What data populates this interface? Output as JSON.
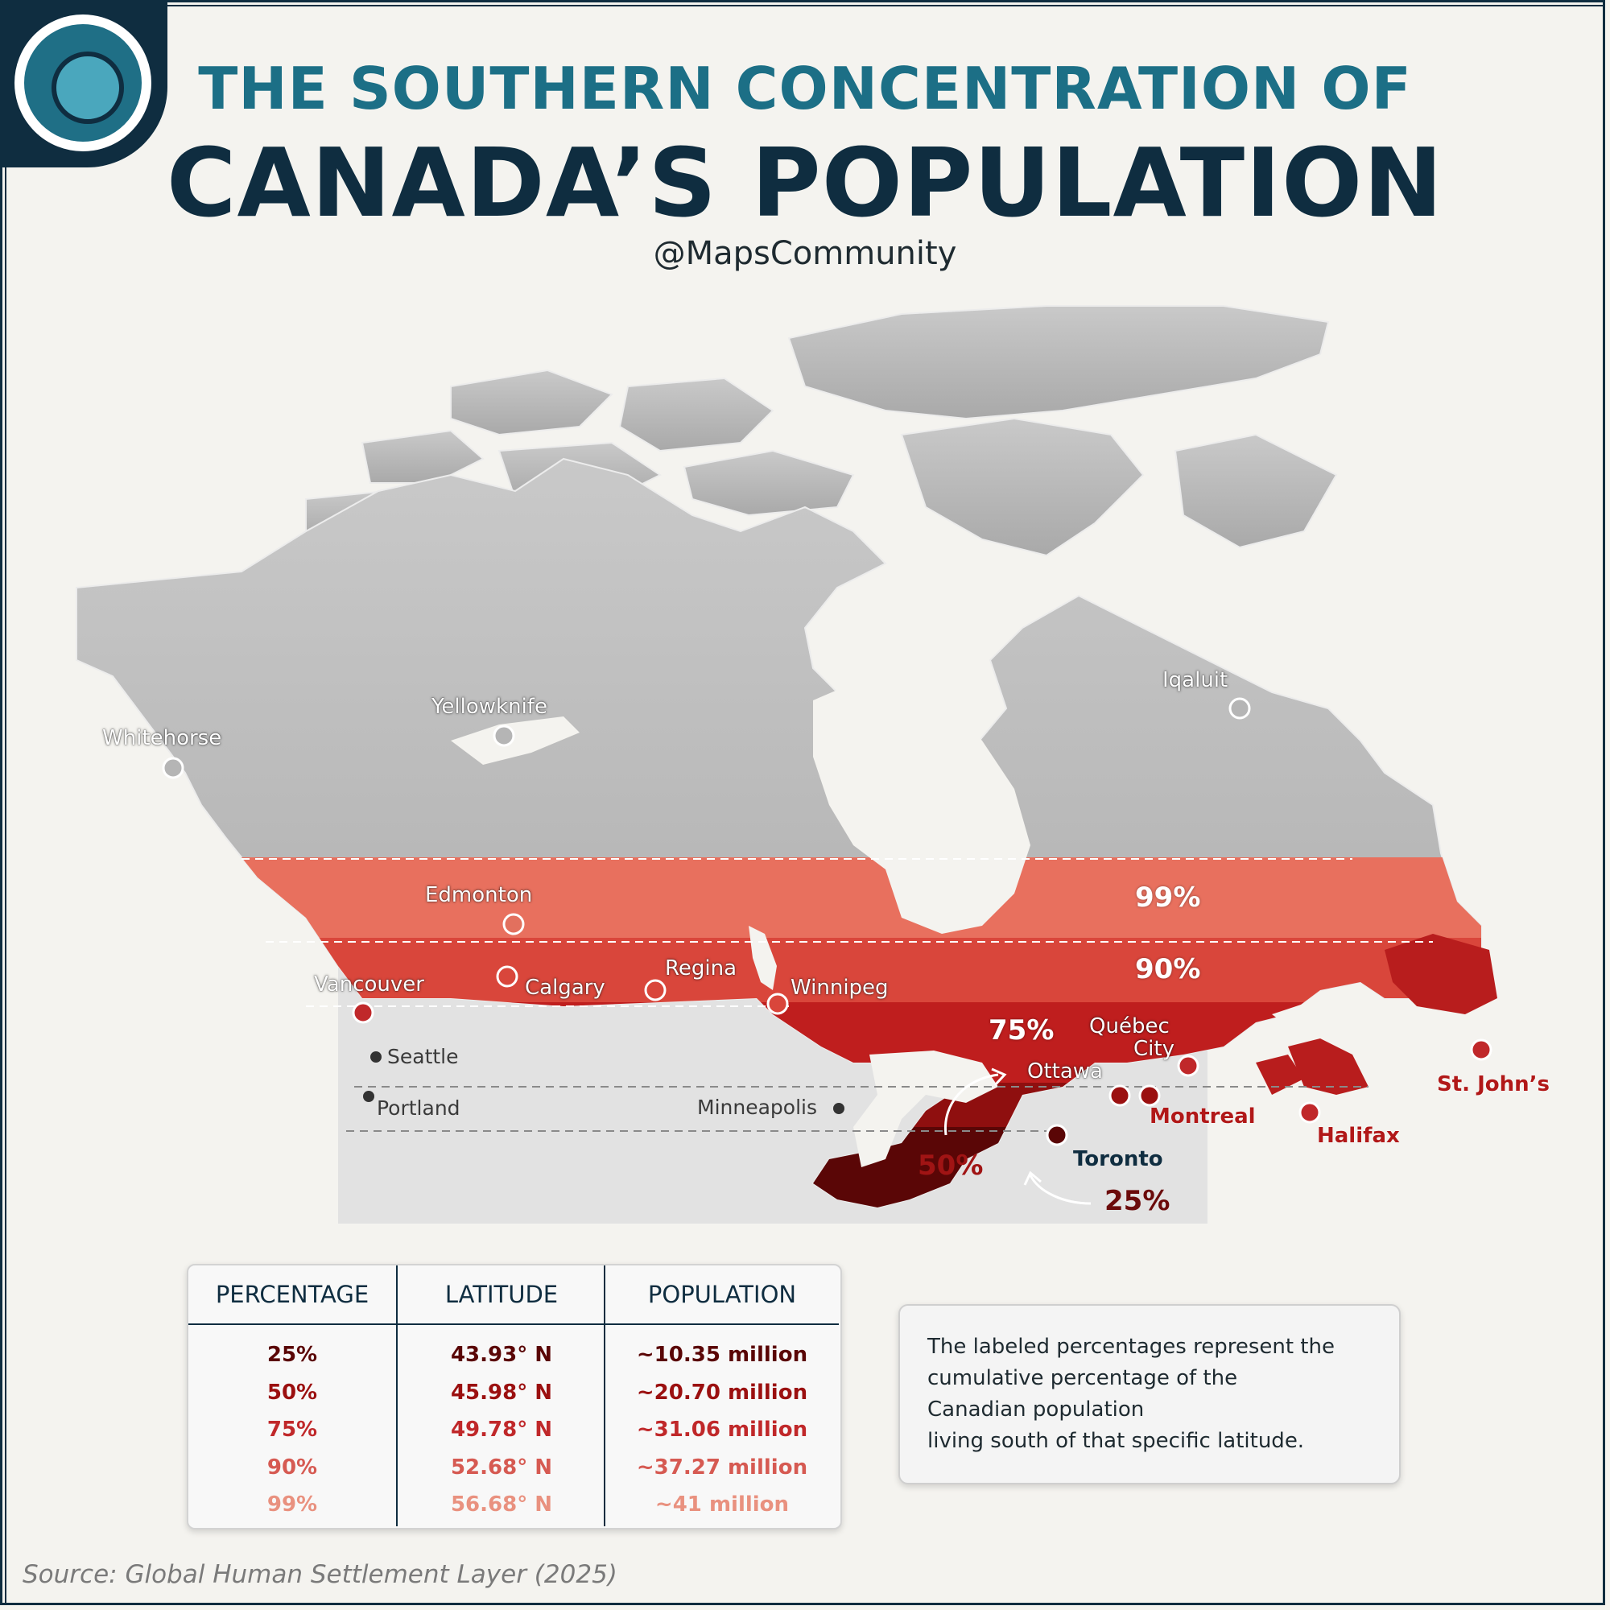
{
  "header": {
    "title_line1": "THE SOUTHERN CONCENTRATION OF",
    "title_line2": "CANADA’S POPULATION",
    "handle": "@MapsCommunity"
  },
  "colors": {
    "navy": "#0f2d40",
    "teal": "#1c6f86",
    "band_99": "#e8705e",
    "band_90": "#d9463b",
    "band_75": "#bf1e1e",
    "band_50": "#8f0f0f",
    "band_25": "#5a0606"
  },
  "map": {
    "cities": {
      "whitehorse": "Whitehorse",
      "yellowknife": "Yellowknife",
      "iqaluit": "Iqaluit",
      "edmonton": "Edmonton",
      "vancouver": "Vancouver",
      "calgary": "Calgary",
      "regina": "Regina",
      "winnipeg": "Winnipeg",
      "quebec_city_1": "Québec",
      "quebec_city_2": "City",
      "ottawa": "Ottawa",
      "montreal": "Montreal",
      "toronto": "Toronto",
      "halifax": "Halifax",
      "st_johns": "St. John’s",
      "seattle": "Seattle",
      "portland": "Portland",
      "minneapolis": "Minneapolis"
    },
    "band_labels": {
      "p99": "99%",
      "p90": "90%",
      "p75": "75%",
      "p50": "50%",
      "p25": "25%"
    }
  },
  "table": {
    "headers": [
      "PERCENTAGE",
      "LATITUDE",
      "POPULATION"
    ],
    "rows": [
      {
        "percentage": "25%",
        "latitude": "43.93° N",
        "population": "~10.35 million",
        "color": "#5a0606"
      },
      {
        "percentage": "50%",
        "latitude": "45.98° N",
        "population": "~20.70 million",
        "color": "#9b1010"
      },
      {
        "percentage": "75%",
        "latitude": "49.78° N",
        "population": "~31.06 million",
        "color": "#c0282a"
      },
      {
        "percentage": "90%",
        "latitude": "52.68° N",
        "population": "~37.27 million",
        "color": "#d65a52"
      },
      {
        "percentage": "99%",
        "latitude": "56.68° N",
        "population": "~41 million",
        "color": "#e9917f"
      }
    ]
  },
  "note": {
    "lines": [
      "The labeled percentages represent the",
      "cumulative percentage of the",
      "Canadian population",
      "living south of that specific latitude."
    ]
  },
  "source": "Source: Global Human Settlement Layer (2025)"
}
